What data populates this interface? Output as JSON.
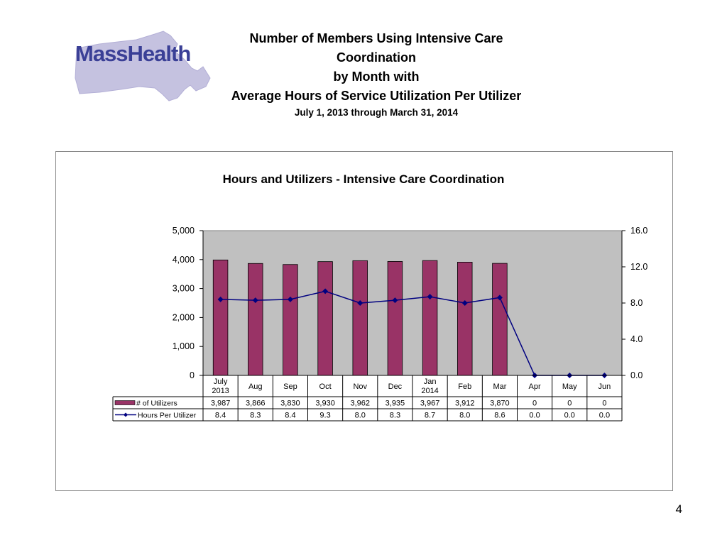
{
  "header": {
    "logo_text": "MassHealth",
    "title_line1": "Number of Members Using Intensive Care Coordination",
    "title_line2": "by Month with",
    "title_line3": "Average Hours of Service Utilization Per Utilizer",
    "date_range": "July 1, 2013 through March 31, 2014"
  },
  "page_number": "4",
  "colors": {
    "bar_fill": "#993366",
    "line_color": "#000080",
    "plot_background": "#c0c0c0",
    "logo_text": "#3a3f96",
    "logo_map": "#c5c2e0"
  },
  "chart_data": {
    "type": "bar",
    "title": "Hours and Utilizers - Intensive Care Coordination",
    "categories": [
      [
        "July",
        "2013"
      ],
      [
        "Aug"
      ],
      [
        "Sep"
      ],
      [
        "Oct"
      ],
      [
        "Nov"
      ],
      [
        "Dec"
      ],
      [
        "Jan",
        "2014"
      ],
      [
        "Feb"
      ],
      [
        "Mar"
      ],
      [
        "Apr"
      ],
      [
        "May"
      ],
      [
        "Jun"
      ]
    ],
    "series": [
      {
        "name": "# of Utilizers",
        "type": "bar",
        "axis": "left",
        "values": [
          3987,
          3866,
          3830,
          3930,
          3962,
          3935,
          3967,
          3912,
          3870,
          0,
          0,
          0
        ],
        "labels": [
          "3,987",
          "3,866",
          "3,830",
          "3,930",
          "3,962",
          "3,935",
          "3,967",
          "3,912",
          "3,870",
          "0",
          "0",
          "0"
        ]
      },
      {
        "name": "Hours Per Utilizer",
        "type": "line",
        "axis": "right",
        "values": [
          8.4,
          8.3,
          8.4,
          9.3,
          8.0,
          8.3,
          8.7,
          8.0,
          8.6,
          0.0,
          0.0,
          0.0
        ],
        "labels": [
          "8.4",
          "8.3",
          "8.4",
          "9.3",
          "8.0",
          "8.3",
          "8.7",
          "8.0",
          "8.6",
          "0.0",
          "0.0",
          "0.0"
        ]
      }
    ],
    "y_left": {
      "lim": [
        0,
        5000
      ],
      "ticks": [
        0,
        1000,
        2000,
        3000,
        4000,
        5000
      ],
      "tick_labels": [
        "0",
        "1,000",
        "2,000",
        "3,000",
        "4,000",
        "5,000"
      ]
    },
    "y_right": {
      "lim": [
        0,
        16
      ],
      "ticks": [
        0,
        4,
        8,
        12,
        16
      ],
      "tick_labels": [
        "0.0",
        "4.0",
        "8.0",
        "12.0",
        "16.0"
      ]
    },
    "data_table": true
  }
}
